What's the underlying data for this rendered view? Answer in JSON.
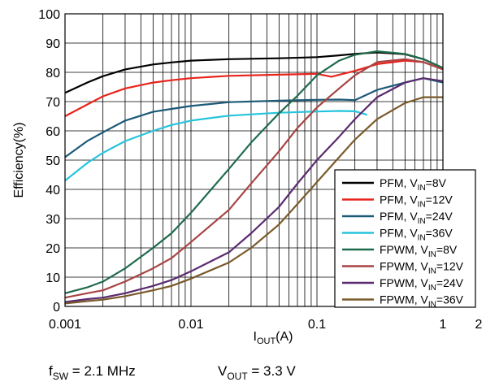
{
  "chart_data": {
    "type": "line",
    "xscale": "log",
    "xlim": [
      0.001,
      1
    ],
    "ylim": [
      0,
      100
    ],
    "xlabel": {
      "main": "I",
      "sub": "OUT",
      "tail": "(A)"
    },
    "ylabel": "Efficiency(%)",
    "xticks": [
      {
        "value": 0.001,
        "label": "0.001"
      },
      {
        "value": 0.01,
        "label": "0.01"
      },
      {
        "value": 0.1,
        "label": "0.1"
      },
      {
        "value": 1,
        "label": "1"
      }
    ],
    "x_extra_label": "2",
    "yticks": [
      0,
      10,
      20,
      30,
      40,
      50,
      60,
      70,
      80,
      90,
      100
    ],
    "grid": true,
    "legend": "bottom-right",
    "series": [
      {
        "name": "PFM, VIN=8V",
        "legend": {
          "pre": "PFM, V",
          "sub": "IN",
          "post": "=8V"
        },
        "color": "#000000",
        "x": [
          0.001,
          0.0015,
          0.002,
          0.003,
          0.005,
          0.007,
          0.01,
          0.02,
          0.05,
          0.1,
          0.15,
          0.2,
          0.3,
          0.5,
          0.7,
          1.0
        ],
        "y": [
          73,
          76.5,
          78.7,
          81,
          82.7,
          83.4,
          84,
          84.5,
          84.8,
          85.2,
          85.8,
          86.3,
          86.8,
          86.2,
          84.5,
          81.5
        ]
      },
      {
        "name": "PFM, VIN=12V",
        "legend": {
          "pre": "PFM, V",
          "sub": "IN",
          "post": "=12V"
        },
        "color": "#e8241c",
        "x": [
          0.001,
          0.0015,
          0.002,
          0.003,
          0.005,
          0.007,
          0.01,
          0.02,
          0.05,
          0.1,
          0.13,
          0.2,
          0.3,
          0.5,
          0.7,
          1.0
        ],
        "y": [
          65,
          69,
          71.8,
          74.5,
          76.5,
          77.3,
          78,
          78.8,
          79.2,
          79.5,
          78.5,
          80.5,
          82.8,
          84,
          83.5,
          81
        ]
      },
      {
        "name": "PFM, VIN=24V",
        "legend": {
          "pre": "PFM, V",
          "sub": "IN",
          "post": "=24V"
        },
        "color": "#1c5a78",
        "x": [
          0.001,
          0.0015,
          0.002,
          0.003,
          0.005,
          0.007,
          0.01,
          0.02,
          0.05,
          0.1,
          0.15,
          0.2,
          0.3,
          0.5,
          0.7,
          1.0
        ],
        "y": [
          51,
          56.5,
          59.5,
          63.5,
          66.5,
          67.5,
          68.5,
          69.8,
          70.3,
          70.6,
          70.7,
          70.5,
          74,
          76.5,
          78,
          76.5
        ]
      },
      {
        "name": "PFM, VIN=36V",
        "legend": {
          "pre": "PFM, V",
          "sub": "IN",
          "post": "=36V"
        },
        "color": "#26c4dc",
        "x": [
          0.001,
          0.0015,
          0.002,
          0.003,
          0.005,
          0.007,
          0.01,
          0.02,
          0.05,
          0.1,
          0.15,
          0.2,
          0.25
        ],
        "y": [
          43,
          49,
          52.5,
          56.5,
          60,
          62,
          63.5,
          65.2,
          66.2,
          66.6,
          66.8,
          66.7,
          65.5
        ]
      },
      {
        "name": "FPWM, VIN=8V",
        "legend": {
          "pre": "FPWM, V",
          "sub": "IN",
          "post": "=8V"
        },
        "color": "#1f6b4c",
        "x": [
          0.001,
          0.0015,
          0.002,
          0.003,
          0.005,
          0.007,
          0.01,
          0.02,
          0.03,
          0.05,
          0.07,
          0.1,
          0.15,
          0.2,
          0.3,
          0.5,
          0.7,
          1.0
        ],
        "y": [
          4.5,
          6.5,
          8.5,
          13,
          20,
          25,
          32,
          47,
          56,
          66,
          72,
          79,
          84,
          86,
          87.2,
          86.3,
          84.5,
          81.5
        ]
      },
      {
        "name": "FPWM, VIN=12V",
        "legend": {
          "pre": "FPWM, V",
          "sub": "IN",
          "post": "=12V"
        },
        "color": "#a84444",
        "x": [
          0.001,
          0.0015,
          0.002,
          0.003,
          0.005,
          0.007,
          0.01,
          0.02,
          0.03,
          0.05,
          0.07,
          0.1,
          0.15,
          0.2,
          0.3,
          0.5,
          0.7,
          1.0
        ],
        "y": [
          3,
          4.5,
          5.5,
          8.5,
          13,
          16.5,
          22,
          33,
          42,
          53,
          61,
          68,
          74.5,
          79,
          83.5,
          84.5,
          83.5,
          81
        ]
      },
      {
        "name": "FPWM, VIN=24V",
        "legend": {
          "pre": "FPWM, V",
          "sub": "IN",
          "post": "=24V"
        },
        "color": "#5a2a6e",
        "x": [
          0.001,
          0.0015,
          0.002,
          0.003,
          0.005,
          0.007,
          0.01,
          0.02,
          0.03,
          0.05,
          0.07,
          0.1,
          0.15,
          0.2,
          0.3,
          0.5,
          0.7,
          1.0
        ],
        "y": [
          1.5,
          2.5,
          3,
          4.5,
          7,
          9,
          12,
          18.5,
          25,
          34,
          42,
          50,
          58,
          64,
          71.5,
          76.5,
          78,
          77
        ]
      },
      {
        "name": "FPWM, VIN=36V",
        "legend": {
          "pre": "FPWM, V",
          "sub": "IN",
          "post": "=36V"
        },
        "color": "#7a5a2a",
        "x": [
          0.001,
          0.0015,
          0.002,
          0.003,
          0.005,
          0.007,
          0.01,
          0.02,
          0.03,
          0.05,
          0.07,
          0.1,
          0.15,
          0.2,
          0.3,
          0.5,
          0.7,
          1.0
        ],
        "y": [
          1,
          1.8,
          2.3,
          3.5,
          5.5,
          7,
          9.5,
          15,
          20,
          28,
          35,
          42.5,
          51,
          57,
          64,
          69.5,
          71.5,
          71.5
        ]
      }
    ]
  },
  "conditions": {
    "fsw": {
      "pre": "f",
      "sub": "SW",
      "post": " = 2.1 MHz"
    },
    "vout": {
      "pre": "V",
      "sub": "OUT",
      "post": " = 3.3 V"
    }
  }
}
